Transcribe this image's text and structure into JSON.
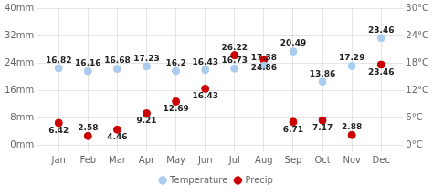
{
  "chart_data": {
    "type": "scatter",
    "categories": [
      "Jan",
      "Feb",
      "Mar",
      "Apr",
      "May",
      "Jun",
      "Jul",
      "Aug",
      "Sep",
      "Oct",
      "Nov",
      "Dec"
    ],
    "series": [
      {
        "name": "Temperature",
        "color": "#aaccee",
        "marker": "circle",
        "axis": "y2",
        "values": [
          16.82,
          16.16,
          16.68,
          17.23,
          16.2,
          16.43,
          16.73,
          17.38,
          20.49,
          13.86,
          17.29,
          23.46
        ]
      },
      {
        "name": "Precip",
        "color": "#cc0000",
        "marker": "circle",
        "values": [
          6.42,
          2.58,
          4.46,
          9.21,
          12.69,
          16.43,
          26.22,
          24.86,
          6.71,
          7.17,
          2.88,
          23.46
        ]
      }
    ],
    "ylim": [
      0,
      40
    ],
    "yticks": [
      {
        "value": 0,
        "label": "0mm"
      },
      {
        "value": 8,
        "label": "8mm"
      },
      {
        "value": 16,
        "label": "16mm"
      },
      {
        "value": 24,
        "label": "24mm"
      },
      {
        "value": 32,
        "label": "32mm"
      },
      {
        "value": 40,
        "label": "40mm"
      }
    ],
    "y2lim": [
      0,
      30
    ],
    "y2ticks": [
      {
        "value": 0,
        "label": "0°C"
      },
      {
        "value": 6,
        "label": "6°C"
      },
      {
        "value": 12,
        "label": "12°C"
      },
      {
        "value": 18,
        "label": "18°C"
      },
      {
        "value": 24,
        "label": "24°C"
      },
      {
        "value": 30,
        "label": "30°C"
      }
    ],
    "grid": true,
    "legend": "bottom",
    "data_labels": true
  }
}
